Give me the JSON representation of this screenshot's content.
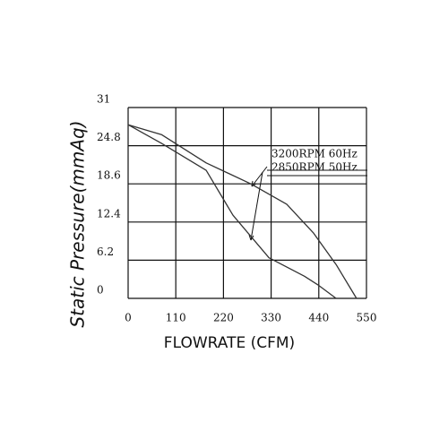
{
  "chart_data": {
    "type": "line",
    "x_label": "FLOWRATE (CFM)",
    "y_label": "Static Pressure(mmAq)",
    "xlim": [
      0,
      550
    ],
    "xticks": [
      0,
      110,
      220,
      330,
      440,
      550
    ],
    "ylim": [
      0,
      31
    ],
    "yticks": [
      0,
      6.2,
      12.4,
      18.6,
      24.8,
      31
    ],
    "grid": true,
    "series": [
      {
        "name": "3200RPM  60Hz",
        "color": "#333333",
        "x": [
          0,
          77,
          180,
          283,
          366,
          428,
          480,
          527
        ],
        "values": [
          28.2,
          26.6,
          22.0,
          18.6,
          15.3,
          10.6,
          5.5,
          0
        ]
      },
      {
        "name": "2850RPM  50Hz",
        "color": "#333333",
        "x": [
          0,
          77,
          180,
          242,
          325,
          407,
          438,
          480
        ],
        "values": [
          28.2,
          25.2,
          20.8,
          13.5,
          6.6,
          3.6,
          2.2,
          0
        ]
      }
    ]
  }
}
